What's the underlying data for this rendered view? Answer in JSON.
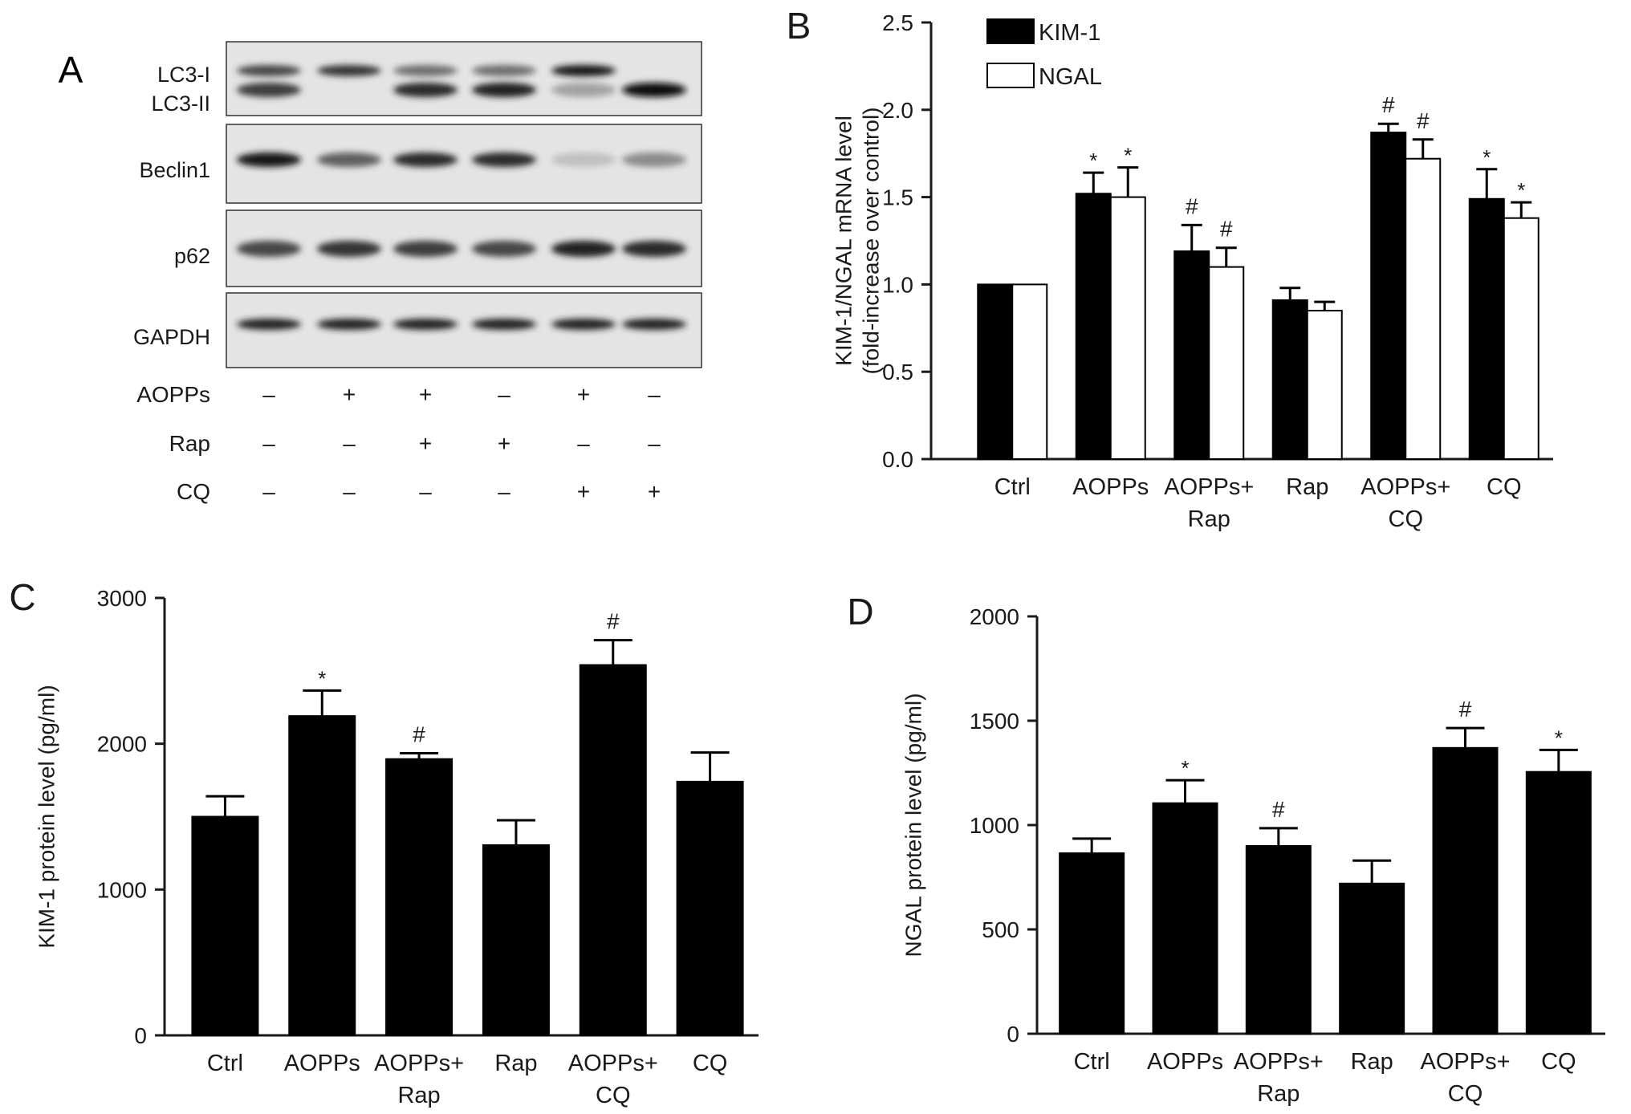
{
  "figure": {
    "panel_a": {
      "letter": "A",
      "blot_rows": [
        "LC3-I",
        "LC3-II",
        "Beclin1",
        "p62",
        "GAPDH"
      ],
      "treatments": [
        {
          "label": "AOPPs",
          "signs": [
            "–",
            "+",
            "+",
            "–",
            "+",
            "–"
          ]
        },
        {
          "label": "Rap",
          "signs": [
            "–",
            "–",
            "+",
            "+",
            "–",
            "–"
          ]
        },
        {
          "label": "CQ",
          "signs": [
            "–",
            "–",
            "–",
            "–",
            "+",
            "+"
          ]
        }
      ],
      "band_intensity": {
        "LC3-I": [
          0.7,
          0.8,
          0.55,
          0.55,
          0.95,
          0.0
        ],
        "LC3-II": [
          0.75,
          0.0,
          0.85,
          0.9,
          0.35,
          1.0
        ],
        "Beclin1": [
          0.95,
          0.6,
          0.85,
          0.85,
          0.2,
          0.45
        ],
        "p62": [
          0.7,
          0.8,
          0.75,
          0.7,
          0.9,
          0.85
        ],
        "GAPDH": [
          0.9,
          0.9,
          0.9,
          0.9,
          0.9,
          0.9
        ]
      }
    }
  },
  "colors": {
    "bar_fill": "#000000",
    "kim1": "#000000",
    "ngal": "#ffffff",
    "axis": "#1a1a1a"
  },
  "chart_data": [
    {
      "panel": "B",
      "type": "bar",
      "ylabel": "KIM-1/NGAL mRNA level\n(fold-increase over control)",
      "ylim": [
        0,
        2.5
      ],
      "yticks": [
        "0.0",
        "0.5",
        "1.0",
        "1.5",
        "2.0",
        "2.5"
      ],
      "categories": [
        "Ctrl",
        "AOPPs",
        "AOPPs+\nRap",
        "Rap",
        "AOPPs+\nCQ",
        "CQ"
      ],
      "series": [
        {
          "name": "KIM-1",
          "values": [
            1.0,
            1.52,
            1.19,
            0.91,
            1.87,
            1.49
          ],
          "errors": [
            0,
            0.12,
            0.15,
            0.07,
            0.05,
            0.17
          ],
          "marks": [
            "",
            "*",
            "#",
            "",
            "#",
            "*"
          ]
        },
        {
          "name": "NGAL",
          "values": [
            1.0,
            1.5,
            1.1,
            0.85,
            1.72,
            1.38
          ],
          "errors": [
            0,
            0.17,
            0.11,
            0.05,
            0.11,
            0.09
          ],
          "marks": [
            "",
            "*",
            "#",
            "",
            "#",
            "*"
          ]
        }
      ],
      "legend": "top-left"
    },
    {
      "panel": "C",
      "type": "bar",
      "ylabel": "KIM-1 protein level (pg/ml)",
      "ylim": [
        0,
        3000
      ],
      "yticks": [
        "0",
        "1000",
        "2000",
        "3000"
      ],
      "categories": [
        "Ctrl",
        "AOPPs",
        "AOPPs+\nRap",
        "Rap",
        "AOPPs+\nCQ",
        "CQ"
      ],
      "series": [
        {
          "values": [
            1500,
            2190,
            1895,
            1305,
            2540,
            1740
          ],
          "errors": [
            140,
            175,
            40,
            170,
            170,
            200
          ],
          "marks": [
            "",
            "*",
            "#",
            "",
            "#",
            ""
          ]
        }
      ]
    },
    {
      "panel": "D",
      "type": "bar",
      "ylabel": "NGAL protein level (pg/ml)",
      "ylim": [
        0,
        2000
      ],
      "yticks": [
        "0",
        "500",
        "1000",
        "1500",
        "2000"
      ],
      "categories": [
        "Ctrl",
        "AOPPs",
        "AOPPs+\nRap",
        "Rap",
        "AOPPs+\nCQ",
        "CQ"
      ],
      "series": [
        {
          "values": [
            865,
            1105,
            900,
            720,
            1370,
            1255
          ],
          "errors": [
            70,
            110,
            85,
            110,
            95,
            105
          ],
          "marks": [
            "",
            "*",
            "#",
            "",
            "#",
            "*"
          ]
        }
      ]
    }
  ]
}
